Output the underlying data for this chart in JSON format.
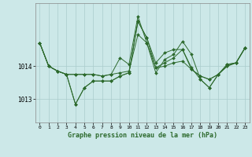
{
  "title": "Graphe pression niveau de la mer (hPa)",
  "background_color": "#cce8e8",
  "plot_bg_color": "#cce8e8",
  "line_color": "#2d6a2d",
  "marker_color": "#2d6a2d",
  "grid_color": "#aacccc",
  "xlim": [
    -0.5,
    23.5
  ],
  "ylim": [
    1012.3,
    1015.9
  ],
  "yticks": [
    1013,
    1014
  ],
  "xticks": [
    0,
    1,
    2,
    3,
    4,
    5,
    6,
    7,
    8,
    9,
    10,
    11,
    12,
    13,
    14,
    15,
    16,
    17,
    18,
    19,
    20,
    21,
    22,
    23
  ],
  "series": [
    [
      1014.7,
      1014.0,
      1013.85,
      1013.75,
      1013.75,
      1013.75,
      1013.75,
      1013.7,
      1013.75,
      1013.8,
      1013.85,
      1014.95,
      1014.7,
      1013.95,
      1014.0,
      1014.1,
      1014.15,
      1013.9,
      1013.7,
      1013.6,
      1013.75,
      1014.0,
      1014.1,
      1014.55
    ],
    [
      1014.7,
      1014.0,
      1013.85,
      1013.75,
      1012.85,
      1013.35,
      1013.55,
      1013.55,
      1013.55,
      1013.7,
      1013.8,
      1015.35,
      1014.85,
      1013.95,
      1014.1,
      1014.25,
      1014.5,
      1013.9,
      1013.7,
      1013.6,
      1013.75,
      1014.0,
      1014.1,
      1014.55
    ],
    [
      1014.7,
      1014.0,
      1013.85,
      1013.75,
      1013.75,
      1013.75,
      1013.75,
      1013.7,
      1013.75,
      1014.25,
      1014.05,
      1015.5,
      1014.7,
      1013.8,
      1014.2,
      1014.35,
      1014.75,
      1014.35,
      1013.6,
      1013.35,
      1013.75,
      1014.05,
      1014.1,
      1014.55
    ],
    [
      1014.7,
      1014.0,
      1013.85,
      1013.75,
      1012.85,
      1013.35,
      1013.55,
      1013.55,
      1013.55,
      1013.7,
      1013.8,
      1015.35,
      1014.85,
      1014.1,
      1014.4,
      1014.5,
      1014.5,
      1013.95,
      1013.6,
      1013.35,
      1013.75,
      1014.05,
      1014.1,
      1014.55
    ]
  ]
}
